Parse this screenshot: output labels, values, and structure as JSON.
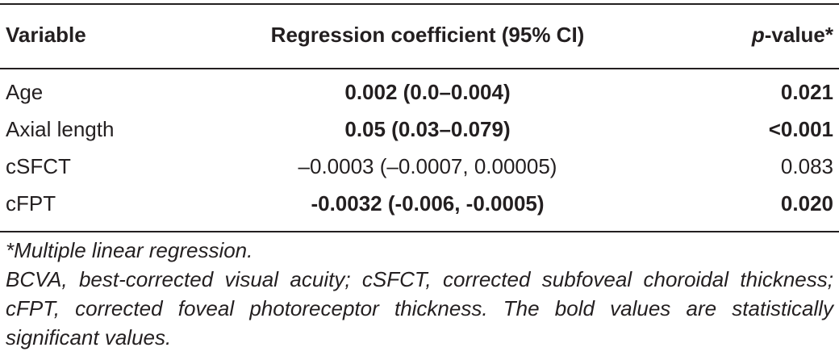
{
  "table": {
    "headers": {
      "variable": "Variable",
      "coefficient": "Regression coefficient (95% CI)",
      "p_italic": "p",
      "p_rest": "-value*"
    },
    "rows": [
      {
        "variable": "Age",
        "coefficient": "0.002 (0.0–0.004)",
        "p_value": "0.021",
        "coef_bold": true,
        "p_bold": true
      },
      {
        "variable": "Axial length",
        "coefficient": "0.05 (0.03–0.079)",
        "p_value": "<0.001",
        "coef_bold": true,
        "p_bold": true
      },
      {
        "variable": "cSFCT",
        "coefficient": "–0.0003 (–0.0007, 0.00005)",
        "p_value": "0.083",
        "coef_bold": false,
        "p_bold": false
      },
      {
        "variable": "cFPT",
        "coefficient": "-0.0032 (-0.006, -0.0005)",
        "p_value": "0.020",
        "coef_bold": true,
        "p_bold": true
      }
    ]
  },
  "footnotes": {
    "method": "*Multiple linear regression.",
    "abbreviations": "BCVA, best-corrected visual acuity; cSFCT, corrected subfoveal choroidal thickness; cFPT, corrected foveal photoreceptor thickness. The bold values are statistically significant values."
  }
}
